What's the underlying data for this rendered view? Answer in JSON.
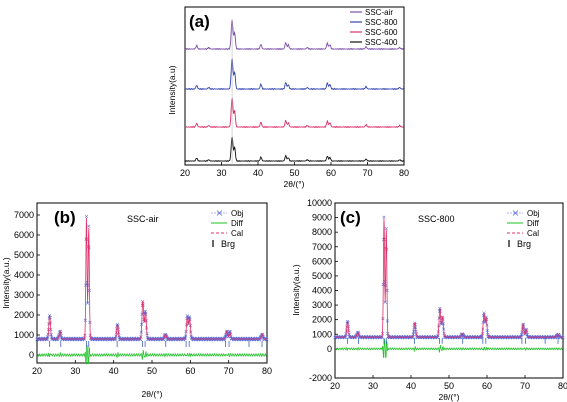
{
  "chart_data": [
    {
      "type": "line",
      "panel_label": "(a)",
      "xlabel": "2θ/(°)",
      "ylabel": "Intensity(a.u)",
      "xlim": [
        20,
        80
      ],
      "x_ticks": [
        "20",
        "30",
        "40",
        "50",
        "60",
        "70",
        "80"
      ],
      "grid": false,
      "legend_position": "top-right",
      "peaks_2theta": [
        23.2,
        26.5,
        32.9,
        33.5,
        40.8,
        47.6,
        48.2,
        53.5,
        58.9,
        59.6,
        69.6,
        78.8
      ],
      "series": [
        {
          "name": "SSC-air",
          "color": "#7B4FA8",
          "main_peak_height": 1.0
        },
        {
          "name": "SSC-800",
          "color": "#3344B0",
          "main_peak_height": 1.0
        },
        {
          "name": "SSC-600",
          "color": "#D8306A",
          "main_peak_height": 1.0
        },
        {
          "name": "SSC-400",
          "color": "#111111",
          "main_peak_height": 1.0
        }
      ]
    },
    {
      "type": "scatter",
      "panel_label": "(b)",
      "sample_label": "SSC-air",
      "xlabel": "2θ/(°)",
      "ylabel": "Intensity(a.u.)",
      "xlim": [
        20,
        80
      ],
      "ylim": [
        -400,
        7600
      ],
      "x_ticks": [
        "20",
        "30",
        "40",
        "50",
        "60",
        "70",
        "80"
      ],
      "y_ticks": [
        "0",
        "1000",
        "2000",
        "3000",
        "4000",
        "5000",
        "6000",
        "7000"
      ],
      "legend": [
        "Obj",
        "Diff",
        "Cal",
        "Brg"
      ],
      "background": 800,
      "peaks": [
        {
          "x": 23.3,
          "y": 2000
        },
        {
          "x": 26.0,
          "y": 1200
        },
        {
          "x": 32.9,
          "y": 6900
        },
        {
          "x": 33.5,
          "y": 6400
        },
        {
          "x": 41.0,
          "y": 1550
        },
        {
          "x": 47.6,
          "y": 2700
        },
        {
          "x": 48.3,
          "y": 2200
        },
        {
          "x": 53.5,
          "y": 1050
        },
        {
          "x": 59.2,
          "y": 1900
        },
        {
          "x": 59.8,
          "y": 1850
        },
        {
          "x": 69.5,
          "y": 1200
        },
        {
          "x": 70.3,
          "y": 1150
        },
        {
          "x": 78.7,
          "y": 1050
        }
      ],
      "bragg_positions": [
        23.3,
        26.2,
        32.9,
        33.5,
        40.9,
        47.5,
        48.2,
        53.6,
        58.9,
        59.7,
        69.2,
        70.1,
        75.3,
        78.7
      ]
    },
    {
      "type": "scatter",
      "panel_label": "(c)",
      "sample_label": "SSC-800",
      "xlabel": "2θ/(°)",
      "ylabel": "Intensity(a.u.)",
      "xlim": [
        20,
        80
      ],
      "ylim": [
        -2000,
        10000
      ],
      "x_ticks": [
        "20",
        "30",
        "40",
        "50",
        "60",
        "70",
        "80"
      ],
      "y_ticks": [
        "-2000",
        "0",
        "1000",
        "2000",
        "3000",
        "4000",
        "5000",
        "6000",
        "7000",
        "8000",
        "9000",
        "10000"
      ],
      "legend": [
        "Obj",
        "Diff",
        "Cal",
        "Brg"
      ],
      "background": 800,
      "peaks": [
        {
          "x": 23.3,
          "y": 1900
        },
        {
          "x": 26.0,
          "y": 1150
        },
        {
          "x": 32.9,
          "y": 9000
        },
        {
          "x": 33.5,
          "y": 8200
        },
        {
          "x": 41.0,
          "y": 1800
        },
        {
          "x": 47.6,
          "y": 2800
        },
        {
          "x": 48.3,
          "y": 2200
        },
        {
          "x": 53.5,
          "y": 1050
        },
        {
          "x": 59.2,
          "y": 2400
        },
        {
          "x": 59.8,
          "y": 2100
        },
        {
          "x": 69.5,
          "y": 1700
        },
        {
          "x": 70.3,
          "y": 1300
        },
        {
          "x": 78.7,
          "y": 1000
        }
      ],
      "bragg_positions": [
        23.3,
        26.2,
        32.9,
        33.5,
        40.9,
        47.5,
        48.2,
        53.6,
        58.9,
        59.7,
        69.2,
        70.1,
        75.3,
        78.7
      ]
    }
  ],
  "colors": {
    "obj": "#5A6ED8",
    "cal": "#E0306A",
    "diff": "#22C22A",
    "brg": "#4060C0"
  }
}
